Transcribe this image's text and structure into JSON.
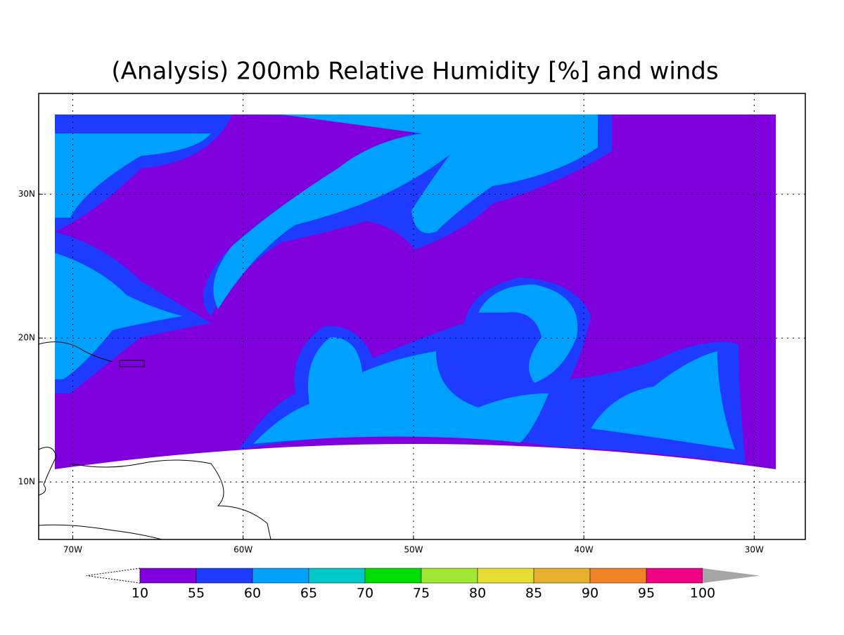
{
  "map": {
    "title": "(Analysis) 200mb Relative Humidity [%] and winds",
    "xlim": [
      -72,
      -27
    ],
    "ylim": [
      6,
      37
    ],
    "xticks": [
      {
        "value": -70,
        "label": "70W"
      },
      {
        "value": -60,
        "label": "60W"
      },
      {
        "value": -50,
        "label": "50W"
      },
      {
        "value": -40,
        "label": "40W"
      },
      {
        "value": -30,
        "label": "30W"
      }
    ],
    "yticks": [
      {
        "value": 10,
        "label": "10N"
      },
      {
        "value": 20,
        "label": "20N"
      },
      {
        "value": 30,
        "label": "30N"
      }
    ],
    "grid": true,
    "colorbar": {
      "labels": [
        "10",
        "55",
        "60",
        "65",
        "70",
        "75",
        "80",
        "85",
        "90",
        "95",
        "100"
      ],
      "colors": [
        "#7f00dc",
        "#1e3cff",
        "#00a0ff",
        "#00c8c8",
        "#00dc00",
        "#a0e632",
        "#e6dc32",
        "#e6af2d",
        "#f08228",
        "#f00082"
      ],
      "over_color": "#a6a6a6"
    }
  }
}
